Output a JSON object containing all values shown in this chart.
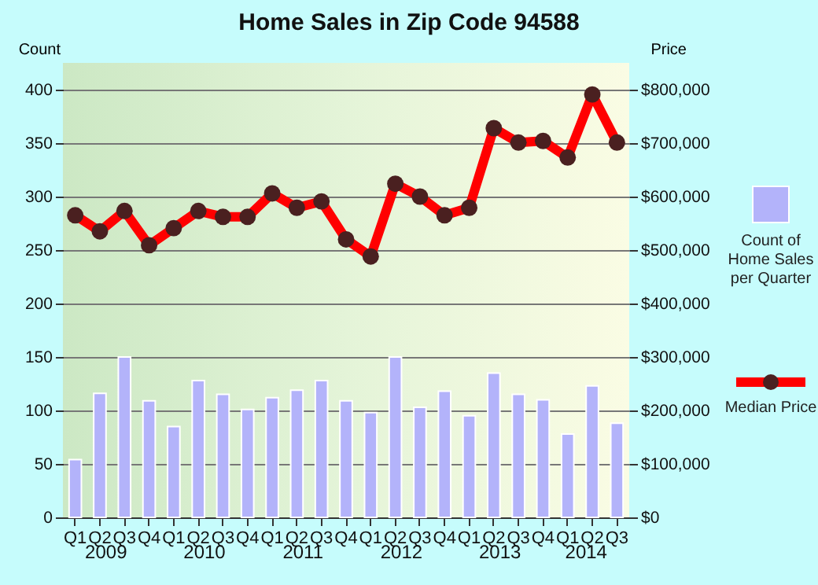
{
  "chart_data": {
    "type": "bar",
    "title": "Home Sales in Zip Code 94588",
    "ylabel": "Count",
    "y2label": "Price",
    "categories": [
      "Q1",
      "Q2",
      "Q3",
      "Q4",
      "Q1",
      "Q2",
      "Q3",
      "Q4",
      "Q1",
      "Q2",
      "Q3",
      "Q4",
      "Q1",
      "Q2",
      "Q3",
      "Q4",
      "Q1",
      "Q2",
      "Q3",
      "Q4",
      "Q1",
      "Q2",
      "Q3"
    ],
    "annotations": [
      "2009",
      "2010",
      "2011",
      "2012",
      "2013",
      "2014"
    ],
    "series": [
      {
        "name": "Count of Home Sales per Quarter",
        "color": "#b3b3fa",
        "values": [
          54,
          116,
          150,
          109,
          85,
          128,
          115,
          101,
          112,
          119,
          128,
          109,
          98,
          150,
          103,
          118,
          95,
          135,
          115,
          110,
          78,
          123,
          88
        ]
      },
      {
        "name": "Median Price",
        "type": "line",
        "axis": "y2",
        "color": "#ff0000",
        "marker": "circle",
        "values": [
          565000,
          535000,
          573000,
          509000,
          541000,
          573000,
          562000,
          562000,
          606000,
          579000,
          591000,
          520000,
          488000,
          624000,
          600000,
          565000,
          579000,
          728000,
          701000,
          704000,
          673000,
          791000,
          701000
        ]
      }
    ],
    "ylim": [
      0,
      425
    ],
    "yticks": [
      0,
      50,
      100,
      150,
      200,
      250,
      300,
      350,
      400
    ],
    "y2lim": [
      0,
      850000
    ],
    "y2ticks": [
      {
        "value": 0,
        "label": "$0"
      },
      {
        "value": 100000,
        "label": "$100,000"
      },
      {
        "value": 200000,
        "label": "$200,000"
      },
      {
        "value": 300000,
        "label": "$300,000"
      },
      {
        "value": 400000,
        "label": "$400,000"
      },
      {
        "value": 500000,
        "label": "$500,000"
      },
      {
        "value": 600000,
        "label": "$600,000"
      },
      {
        "value": 700000,
        "label": "$700,000"
      },
      {
        "value": 800000,
        "label": "$800,000"
      }
    ],
    "grid": "y",
    "legend": "right"
  }
}
